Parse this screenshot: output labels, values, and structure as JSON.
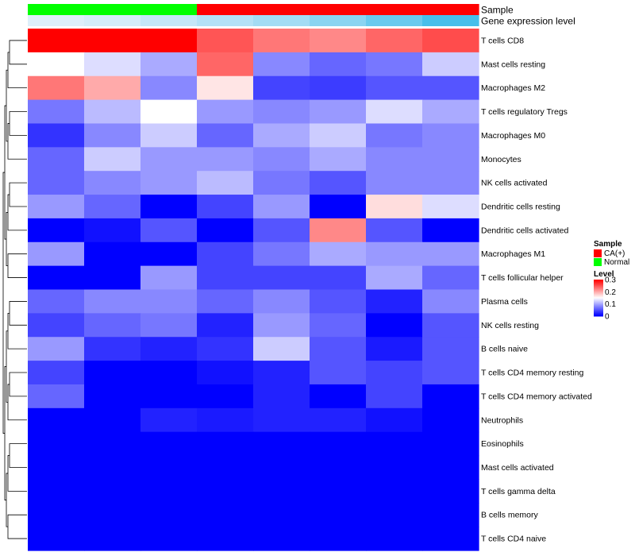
{
  "chart_data": {
    "type": "heatmap",
    "column_annotations": {
      "Sample": [
        "Normal",
        "Normal",
        "Normal",
        "CA(+)",
        "CA(+)",
        "CA(+)",
        "CA(+)",
        "CA(+)"
      ],
      "Gene expression level": [
        0.05,
        0.1,
        0.2,
        0.3,
        0.4,
        0.55,
        0.75,
        0.95
      ]
    },
    "annotation_labels": [
      "Sample",
      "Gene expression level"
    ],
    "rows": [
      "T cells CD8",
      "Mast cells resting",
      "Macrophages M2",
      "T cells regulatory  Tregs",
      "Macrophages M0",
      "Monocytes",
      "NK cells activated",
      "Dendritic cells resting",
      "Dendritic cells activated",
      "Macrophages M1",
      "T cells follicular helper",
      "Plasma cells",
      "NK cells resting",
      "B cells naive",
      "T cells CD4 memory resting",
      "T cells CD4 memory activated",
      "Neutrophils",
      "Eosinophils",
      "Mast cells activated",
      "T cells gamma delta",
      "B cells memory",
      "T cells CD4 naive"
    ],
    "values": [
      [
        0.3,
        0.3,
        0.3,
        0.25,
        0.23,
        0.22,
        0.24,
        0.255
      ],
      [
        0.15,
        0.13,
        0.1,
        0.24,
        0.08,
        0.06,
        0.07,
        0.12
      ],
      [
        0.23,
        0.2,
        0.08,
        0.165,
        0.04,
        0.035,
        0.05,
        0.05
      ],
      [
        0.07,
        0.11,
        0.15,
        0.09,
        0.08,
        0.09,
        0.13,
        0.1
      ],
      [
        0.03,
        0.08,
        0.12,
        0.06,
        0.1,
        0.12,
        0.07,
        0.08
      ],
      [
        0.06,
        0.12,
        0.09,
        0.09,
        0.08,
        0.1,
        0.08,
        0.08
      ],
      [
        0.06,
        0.08,
        0.09,
        0.11,
        0.07,
        0.05,
        0.08,
        0.08
      ],
      [
        0.09,
        0.06,
        0.0,
        0.04,
        0.09,
        0.0,
        0.17,
        0.13
      ],
      [
        0.0,
        0.01,
        0.05,
        0.0,
        0.05,
        0.22,
        0.05,
        0.0
      ],
      [
        0.09,
        0.0,
        0.0,
        0.04,
        0.07,
        0.1,
        0.09,
        0.09
      ],
      [
        0.0,
        0.0,
        0.09,
        0.04,
        0.04,
        0.04,
        0.1,
        0.06
      ],
      [
        0.06,
        0.08,
        0.08,
        0.06,
        0.08,
        0.05,
        0.02,
        0.08
      ],
      [
        0.04,
        0.06,
        0.07,
        0.02,
        0.09,
        0.06,
        0.0,
        0.05
      ],
      [
        0.09,
        0.03,
        0.02,
        0.03,
        0.12,
        0.05,
        0.015,
        0.05
      ],
      [
        0.04,
        0.0,
        0.0,
        0.01,
        0.02,
        0.05,
        0.04,
        0.05
      ],
      [
        0.06,
        0.0,
        0.0,
        0.0,
        0.02,
        0.0,
        0.04,
        0.0
      ],
      [
        0.0,
        0.0,
        0.02,
        0.015,
        0.02,
        0.02,
        0.01,
        0.0
      ],
      [
        0.0,
        0.0,
        0.0,
        0.0,
        0.0,
        0.0,
        0.0,
        0.0
      ],
      [
        0.0,
        0.0,
        0.0,
        0.0,
        0.0,
        0.0,
        0.0,
        0.0
      ],
      [
        0.0,
        0.0,
        0.0,
        0.0,
        0.0,
        0.0,
        0.0,
        0.0
      ],
      [
        0.0,
        0.0,
        0.0,
        0.0,
        0.0,
        0.0,
        0.0,
        0.0
      ],
      [
        0.0,
        0.0,
        0.0,
        0.0,
        0.0,
        0.0,
        0.0,
        0.0
      ]
    ],
    "color_scale": {
      "min": 0,
      "max": 0.3,
      "colors": [
        "#0000ff",
        "#ffffff",
        "#ff0000"
      ],
      "mid": 0.15
    },
    "expression_colors": {
      "low": "#e6f2fb",
      "high": "#3fbce9"
    },
    "legend": {
      "sample_title": "Sample",
      "sample_items": [
        {
          "label": "CA(+)",
          "color": "#ff0000"
        },
        {
          "label": "Normal",
          "color": "#00ff00"
        }
      ],
      "level_title": "Level",
      "level_ticks": [
        "0.3",
        "0.2",
        "0.1",
        "0"
      ],
      "level_values": [
        0.3,
        0.2,
        0.1,
        0
      ],
      "placement": "right"
    },
    "sample_colors": {
      "CA(+)": "#ff0000",
      "Normal": "#00ff00"
    },
    "row_dendrogram": true,
    "column_dendrogram": false
  }
}
